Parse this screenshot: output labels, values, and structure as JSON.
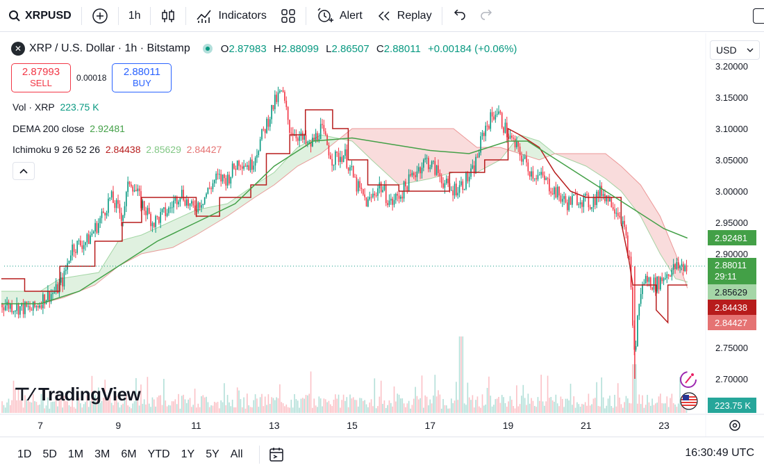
{
  "toolbar": {
    "symbol": "XRPUSD",
    "interval": "1h",
    "indicators": "Indicators",
    "alert": "Alert",
    "replay": "Replay",
    "icons": [
      "search-icon",
      "plus-circle-icon",
      "candles-icon",
      "indicators-icon",
      "templates-icon",
      "alarm-icon",
      "replay-icon",
      "undo-icon",
      "redo-icon"
    ]
  },
  "legend": {
    "title": "XRP / U.S. Dollar · 1h · Bitstamp",
    "o_label": "O",
    "o": "2.87983",
    "h_label": "H",
    "h": "2.88099",
    "l_label": "L",
    "l": "2.86507",
    "c_label": "C",
    "c": "2.88011",
    "change": "+0.00184 (+0.06%)"
  },
  "trade": {
    "sell_price": "2.87993",
    "sell_label": "SELL",
    "spread": "0.00018",
    "buy_price": "2.88011",
    "buy_label": "BUY"
  },
  "indicators": {
    "vol_label": "Vol · XRP",
    "vol_value": "223.75 K",
    "dema_label": "DEMA 200 close",
    "dema_value": "2.92481",
    "ichi_label": "Ichimoku 9 26 52 26",
    "ichi_v1": "2.84438",
    "ichi_v2": "2.85629",
    "ichi_v3": "2.84427"
  },
  "currency": "USD",
  "price_tags": {
    "dema": "2.92481",
    "last": "2.88011",
    "countdown": "29:11",
    "span_a": "2.85629",
    "base": "2.84438",
    "span_b": "2.84427",
    "volume": "223.75 K"
  },
  "watermark": "TradingView",
  "bottombar": {
    "ranges": [
      "1D",
      "5D",
      "1M",
      "3M",
      "6M",
      "YTD",
      "1Y",
      "5Y",
      "All"
    ],
    "clock": "16:30:49 UTC"
  },
  "colors": {
    "up": "#089981",
    "down": "#f23645",
    "dema": "#43a047",
    "base": "#b71c1c",
    "cloud_up": "#a5d6a7",
    "cloud_down": "#ef9a9a"
  },
  "chart_data": {
    "type": "candlestick",
    "y_ticks": [
      "3.20000",
      "3.15000",
      "3.10000",
      "3.05000",
      "3.00000",
      "2.95000",
      "2.90000",
      "2.75000",
      "2.70000"
    ],
    "x_ticks": [
      "7",
      "9",
      "11",
      "13",
      "15",
      "17",
      "19",
      "21",
      "23"
    ],
    "ylim": [
      2.67,
      3.21
    ],
    "close_path": [
      [
        6.0,
        2.82
      ],
      [
        6.4,
        2.815
      ],
      [
        6.8,
        2.81
      ],
      [
        7.1,
        2.83
      ],
      [
        7.4,
        2.84
      ],
      [
        7.6,
        2.86
      ],
      [
        7.8,
        2.91
      ],
      [
        8.2,
        2.92
      ],
      [
        8.5,
        2.95
      ],
      [
        8.8,
        2.99
      ],
      [
        9.1,
        2.96
      ],
      [
        9.3,
        3.02
      ],
      [
        9.6,
        2.98
      ],
      [
        9.9,
        2.95
      ],
      [
        10.3,
        2.97
      ],
      [
        10.6,
        3.0
      ],
      [
        10.9,
        2.97
      ],
      [
        11.2,
        2.99
      ],
      [
        11.5,
        3.02
      ],
      [
        11.8,
        3.02
      ],
      [
        12.1,
        3.05
      ],
      [
        12.4,
        3.04
      ],
      [
        12.7,
        3.09
      ],
      [
        13.0,
        3.14
      ],
      [
        13.2,
        3.16
      ],
      [
        13.4,
        3.1
      ],
      [
        13.6,
        3.09
      ],
      [
        13.9,
        3.07
      ],
      [
        14.2,
        3.1
      ],
      [
        14.5,
        3.05
      ],
      [
        14.8,
        3.06
      ],
      [
        15.1,
        3.01
      ],
      [
        15.4,
        2.98
      ],
      [
        15.7,
        3.01
      ],
      [
        16.0,
        2.98
      ],
      [
        16.3,
        3.0
      ],
      [
        16.6,
        3.03
      ],
      [
        16.9,
        3.05
      ],
      [
        17.2,
        3.03
      ],
      [
        17.5,
        3.0
      ],
      [
        17.8,
        3.01
      ],
      [
        18.1,
        3.03
      ],
      [
        18.4,
        3.1
      ],
      [
        18.7,
        3.13
      ],
      [
        19.0,
        3.09
      ],
      [
        19.3,
        3.06
      ],
      [
        19.6,
        3.03
      ],
      [
        19.9,
        3.02
      ],
      [
        20.2,
        3.0
      ],
      [
        20.5,
        2.98
      ],
      [
        20.8,
        2.99
      ],
      [
        21.1,
        2.98
      ],
      [
        21.4,
        3.0
      ],
      [
        21.7,
        2.98
      ],
      [
        21.9,
        2.96
      ],
      [
        22.1,
        2.9
      ],
      [
        22.25,
        2.73
      ],
      [
        22.35,
        2.82
      ],
      [
        22.5,
        2.86
      ],
      [
        22.8,
        2.85
      ],
      [
        23.1,
        2.87
      ],
      [
        23.4,
        2.88
      ],
      [
        23.6,
        2.88
      ]
    ],
    "dema_path": [
      [
        6.0,
        2.82
      ],
      [
        7.0,
        2.82
      ],
      [
        8.0,
        2.84
      ],
      [
        9.0,
        2.88
      ],
      [
        10.0,
        2.92
      ],
      [
        11.0,
        2.95
      ],
      [
        12.0,
        2.98
      ],
      [
        13.0,
        3.04
      ],
      [
        14.0,
        3.08
      ],
      [
        15.0,
        3.085
      ],
      [
        16.0,
        3.075
      ],
      [
        17.0,
        3.065
      ],
      [
        18.0,
        3.06
      ],
      [
        19.0,
        3.08
      ],
      [
        19.5,
        3.08
      ],
      [
        20.0,
        3.06
      ],
      [
        21.0,
        3.02
      ],
      [
        22.0,
        2.98
      ],
      [
        23.0,
        2.94
      ],
      [
        23.6,
        2.925
      ]
    ],
    "base_path": [
      [
        6.0,
        2.86
      ],
      [
        6.6,
        2.86
      ],
      [
        6.6,
        2.84
      ],
      [
        7.5,
        2.84
      ],
      [
        7.5,
        2.88
      ],
      [
        8.4,
        2.88
      ],
      [
        8.4,
        2.92
      ],
      [
        9.1,
        2.92
      ],
      [
        9.1,
        2.95
      ],
      [
        9.6,
        2.95
      ],
      [
        9.6,
        2.99
      ],
      [
        11.0,
        2.99
      ],
      [
        11.0,
        2.96
      ],
      [
        11.6,
        2.96
      ],
      [
        11.6,
        2.99
      ],
      [
        12.4,
        2.99
      ],
      [
        12.4,
        3.01
      ],
      [
        12.8,
        3.01
      ],
      [
        12.8,
        3.06
      ],
      [
        13.4,
        3.06
      ],
      [
        13.4,
        3.09
      ],
      [
        13.8,
        3.09
      ],
      [
        13.8,
        3.13
      ],
      [
        14.5,
        3.13
      ],
      [
        14.5,
        3.1
      ],
      [
        14.9,
        3.1
      ],
      [
        14.9,
        3.05
      ],
      [
        15.4,
        3.05
      ],
      [
        15.4,
        3.01
      ],
      [
        16.2,
        3.01
      ],
      [
        16.2,
        3.0
      ],
      [
        17.5,
        3.0
      ],
      [
        17.5,
        3.03
      ],
      [
        18.4,
        3.03
      ],
      [
        18.4,
        3.05
      ],
      [
        19.0,
        3.05
      ],
      [
        19.0,
        3.1
      ],
      [
        19.3,
        3.09
      ],
      [
        19.8,
        3.07
      ],
      [
        20.2,
        3.03
      ],
      [
        20.6,
        3.0
      ],
      [
        21.0,
        2.99
      ],
      [
        21.9,
        2.99
      ],
      [
        21.9,
        2.95
      ],
      [
        22.1,
        2.89
      ],
      [
        22.2,
        2.85
      ],
      [
        22.8,
        2.85
      ],
      [
        22.8,
        2.81
      ],
      [
        23.1,
        2.79
      ],
      [
        23.1,
        2.85
      ],
      [
        23.6,
        2.85
      ]
    ],
    "span_a_path": [
      [
        6.0,
        2.84
      ],
      [
        7.0,
        2.84
      ],
      [
        7.5,
        2.86
      ],
      [
        8.5,
        2.87
      ],
      [
        9.0,
        2.92
      ],
      [
        9.6,
        2.93
      ],
      [
        10.3,
        2.95
      ],
      [
        11.0,
        2.97
      ],
      [
        11.8,
        2.98
      ],
      [
        12.5,
        3.01
      ],
      [
        13.0,
        3.03
      ],
      [
        13.6,
        3.07
      ],
      [
        14.2,
        3.09
      ],
      [
        15.0,
        3.08
      ],
      [
        15.5,
        3.05
      ],
      [
        16.2,
        3.01
      ],
      [
        17.0,
        3.02
      ],
      [
        17.6,
        3.03
      ],
      [
        18.2,
        3.03
      ],
      [
        18.8,
        3.05
      ],
      [
        19.3,
        3.09
      ],
      [
        19.8,
        3.08
      ],
      [
        20.2,
        3.06
      ],
      [
        20.6,
        3.05
      ],
      [
        21.0,
        3.04
      ],
      [
        21.5,
        3.02
      ],
      [
        21.9,
        3.0
      ],
      [
        22.4,
        2.96
      ],
      [
        22.9,
        2.9
      ],
      [
        23.3,
        2.86
      ],
      [
        23.6,
        2.855
      ]
    ],
    "span_b_path": [
      [
        6.0,
        2.82
      ],
      [
        7.0,
        2.82
      ],
      [
        7.6,
        2.83
      ],
      [
        8.4,
        2.85
      ],
      [
        9.0,
        2.88
      ],
      [
        9.6,
        2.9
      ],
      [
        10.4,
        2.91
      ],
      [
        11.0,
        2.93
      ],
      [
        11.8,
        2.96
      ],
      [
        12.5,
        2.99
      ],
      [
        13.0,
        3.01
      ],
      [
        13.6,
        3.04
      ],
      [
        14.2,
        3.06
      ],
      [
        15.0,
        3.1
      ],
      [
        15.6,
        3.1
      ],
      [
        16.2,
        3.1
      ],
      [
        17.0,
        3.1
      ],
      [
        17.6,
        3.1
      ],
      [
        18.2,
        3.07
      ],
      [
        18.8,
        3.07
      ],
      [
        19.3,
        3.06
      ],
      [
        19.8,
        3.05
      ],
      [
        20.2,
        3.06
      ],
      [
        20.6,
        3.06
      ],
      [
        21.0,
        3.06
      ],
      [
        21.5,
        3.06
      ],
      [
        21.9,
        3.04
      ],
      [
        22.4,
        3.01
      ],
      [
        22.9,
        2.96
      ],
      [
        23.3,
        2.9
      ],
      [
        23.6,
        2.845
      ]
    ]
  }
}
